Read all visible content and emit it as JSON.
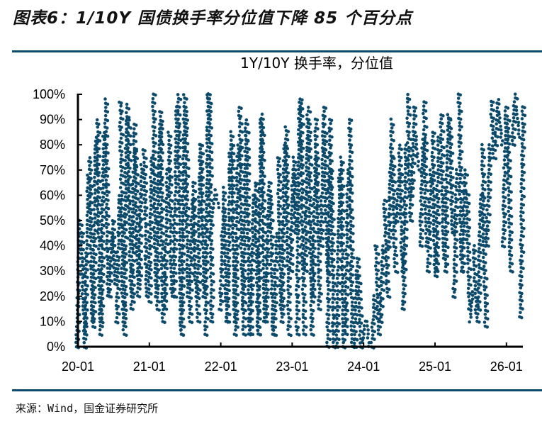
{
  "figure_title": "图表6：1/10Y 国债换手率分位值下降 85 个百分点",
  "source": "来源：Wind，国金证券研究所",
  "colors": {
    "dots": "#0b4a6b",
    "rule": "#0b4a6b",
    "axis": "#000000"
  },
  "chart_data": {
    "type": "scatter",
    "title": "1Y/10Y 换手率，分位值",
    "xlabel": "",
    "ylabel": "",
    "ylim": [
      0,
      100
    ],
    "xlim_years_since_2020_01": [
      0,
      6.22
    ],
    "x_tick_labels": [
      "20-01",
      "21-01",
      "22-01",
      "23-01",
      "24-01",
      "25-01",
      "26-01"
    ],
    "y_tick_labels": [
      "0%",
      "10%",
      "20%",
      "30%",
      "40%",
      "50%",
      "60%",
      "70%",
      "80%",
      "90%",
      "100%"
    ],
    "grid": false,
    "legend": "none",
    "note": "Dense daily points forming near-vertical swings; each entry is [years since 2020-01, low %, high %] of a swing",
    "swings": [
      [
        0.0,
        0,
        50
      ],
      [
        0.07,
        0,
        45
      ],
      [
        0.12,
        5,
        68
      ],
      [
        0.18,
        10,
        75
      ],
      [
        0.23,
        8,
        83
      ],
      [
        0.29,
        5,
        90
      ],
      [
        0.34,
        10,
        85
      ],
      [
        0.4,
        20,
        98
      ],
      [
        0.45,
        20,
        45
      ],
      [
        0.5,
        25,
        50
      ],
      [
        0.56,
        10,
        60
      ],
      [
        0.61,
        10,
        97
      ],
      [
        0.66,
        5,
        96
      ],
      [
        0.72,
        20,
        90
      ],
      [
        0.77,
        15,
        88
      ],
      [
        0.82,
        20,
        78
      ],
      [
        0.87,
        25,
        72
      ],
      [
        0.94,
        20,
        78
      ],
      [
        1.01,
        18,
        75
      ],
      [
        1.07,
        20,
        100
      ],
      [
        1.12,
        15,
        88
      ],
      [
        1.17,
        10,
        93
      ],
      [
        1.23,
        15,
        70
      ],
      [
        1.29,
        20,
        85
      ],
      [
        1.36,
        20,
        95
      ],
      [
        1.42,
        5,
        100
      ],
      [
        1.47,
        5,
        100
      ],
      [
        1.52,
        20,
        95
      ],
      [
        1.58,
        10,
        58
      ],
      [
        1.63,
        20,
        65
      ],
      [
        1.69,
        10,
        80
      ],
      [
        1.74,
        20,
        80
      ],
      [
        1.8,
        5,
        100
      ],
      [
        1.85,
        10,
        100
      ],
      [
        1.9,
        50,
        60
      ],
      [
        1.95,
        55,
        62
      ],
      [
        2.01,
        15,
        55
      ],
      [
        2.06,
        10,
        63
      ],
      [
        2.11,
        10,
        80
      ],
      [
        2.17,
        10,
        85
      ],
      [
        2.22,
        5,
        80
      ],
      [
        2.28,
        15,
        95
      ],
      [
        2.33,
        5,
        90
      ],
      [
        2.38,
        5,
        85
      ],
      [
        2.44,
        5,
        60
      ],
      [
        2.5,
        5,
        65
      ],
      [
        2.54,
        5,
        90
      ],
      [
        2.59,
        10,
        92
      ],
      [
        2.65,
        10,
        65
      ],
      [
        2.71,
        5,
        60
      ],
      [
        2.76,
        5,
        45
      ],
      [
        2.82,
        15,
        75
      ],
      [
        2.87,
        10,
        80
      ],
      [
        2.93,
        5,
        87
      ],
      [
        2.99,
        30,
        70
      ],
      [
        3.03,
        45,
        75
      ],
      [
        3.08,
        5,
        97
      ],
      [
        3.14,
        5,
        98
      ],
      [
        3.2,
        30,
        95
      ],
      [
        3.25,
        5,
        90
      ],
      [
        3.31,
        20,
        90
      ],
      [
        3.36,
        15,
        75
      ],
      [
        3.42,
        40,
        95
      ],
      [
        3.47,
        30,
        85
      ],
      [
        3.51,
        0,
        90
      ],
      [
        3.56,
        0,
        70
      ],
      [
        3.64,
        0,
        70
      ],
      [
        3.7,
        0,
        75
      ],
      [
        3.76,
        5,
        70
      ],
      [
        3.82,
        0,
        90
      ],
      [
        3.89,
        0,
        35
      ],
      [
        3.94,
        0,
        30
      ],
      [
        4.0,
        0,
        10
      ],
      [
        4.06,
        0,
        10
      ],
      [
        4.13,
        0,
        20
      ],
      [
        4.19,
        5,
        40
      ],
      [
        4.25,
        10,
        40
      ],
      [
        4.31,
        20,
        58
      ],
      [
        4.37,
        40,
        90
      ],
      [
        4.42,
        30,
        75
      ],
      [
        4.48,
        50,
        70
      ],
      [
        4.52,
        30,
        80
      ],
      [
        4.57,
        15,
        80
      ],
      [
        4.63,
        50,
        100
      ],
      [
        4.69,
        60,
        95
      ],
      [
        4.75,
        70,
        85
      ],
      [
        4.81,
        40,
        82
      ],
      [
        4.86,
        40,
        97
      ],
      [
        4.92,
        30,
        70
      ],
      [
        4.98,
        28,
        85
      ],
      [
        5.03,
        30,
        83
      ],
      [
        5.1,
        35,
        92
      ],
      [
        5.16,
        30,
        92
      ],
      [
        5.22,
        45,
        90
      ],
      [
        5.28,
        20,
        70
      ],
      [
        5.35,
        30,
        100
      ],
      [
        5.4,
        30,
        70
      ],
      [
        5.46,
        15,
        62
      ],
      [
        5.51,
        10,
        22
      ],
      [
        5.56,
        10,
        40
      ],
      [
        5.62,
        15,
        60
      ],
      [
        5.68,
        8,
        80
      ],
      [
        5.74,
        40,
        80
      ],
      [
        5.8,
        75,
        97
      ],
      [
        5.86,
        80,
        98
      ],
      [
        5.92,
        80,
        92
      ],
      [
        5.97,
        40,
        95
      ],
      [
        6.03,
        30,
        90
      ],
      [
        6.1,
        80,
        100
      ],
      [
        6.16,
        83,
        95
      ],
      [
        6.21,
        12,
        95
      ]
    ]
  }
}
